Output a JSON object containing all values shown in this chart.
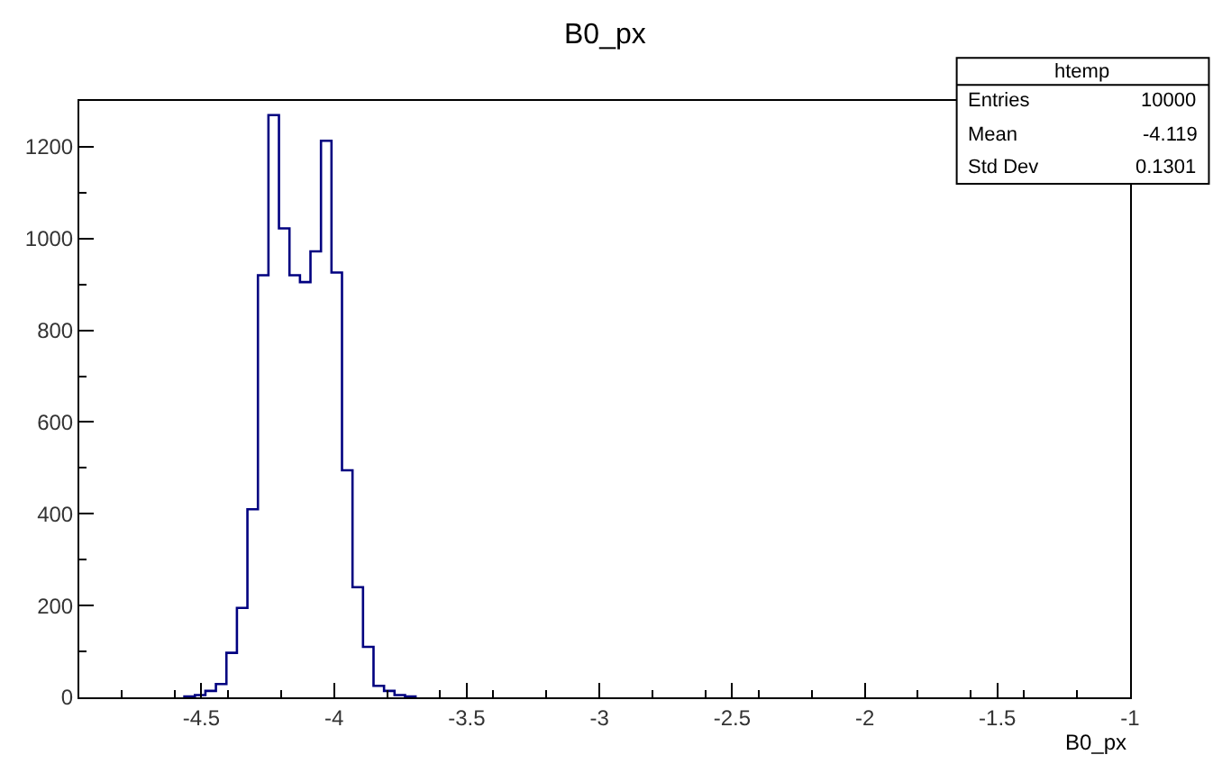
{
  "chart_data": {
    "type": "histogram",
    "title": "B0_px",
    "xlabel": "B0_px",
    "bins": [
      -4.564,
      -4.5244,
      -4.4848,
      -4.4452,
      -4.4056,
      -4.366,
      -4.3264,
      -4.2868,
      -4.2472,
      -4.2076,
      -4.168,
      -4.1284,
      -4.0888,
      -4.0492,
      -4.0096,
      -3.97,
      -3.9304,
      -3.8908,
      -3.8512,
      -3.8116,
      -3.772,
      -3.7324,
      -3.6928
    ],
    "values": [
      2,
      5,
      14,
      29,
      97,
      195,
      410,
      920,
      1269,
      1022,
      920,
      905,
      972,
      1213,
      926,
      495,
      240,
      110,
      25,
      14,
      5,
      2
    ],
    "color": "#000080",
    "xlim": [
      -4.96,
      -1
    ],
    "ylim": [
      0,
      1300
    ],
    "xticks": [
      -4.5,
      -4,
      -3.5,
      -3,
      -2.5,
      -2,
      -1.5,
      -1
    ],
    "yticks": [
      0,
      200,
      400,
      600,
      800,
      1000,
      1200
    ],
    "annotations": [
      "htemp",
      "Entries",
      "10000",
      "Mean",
      "-4.119",
      "Std Dev",
      "0.1301"
    ]
  }
}
